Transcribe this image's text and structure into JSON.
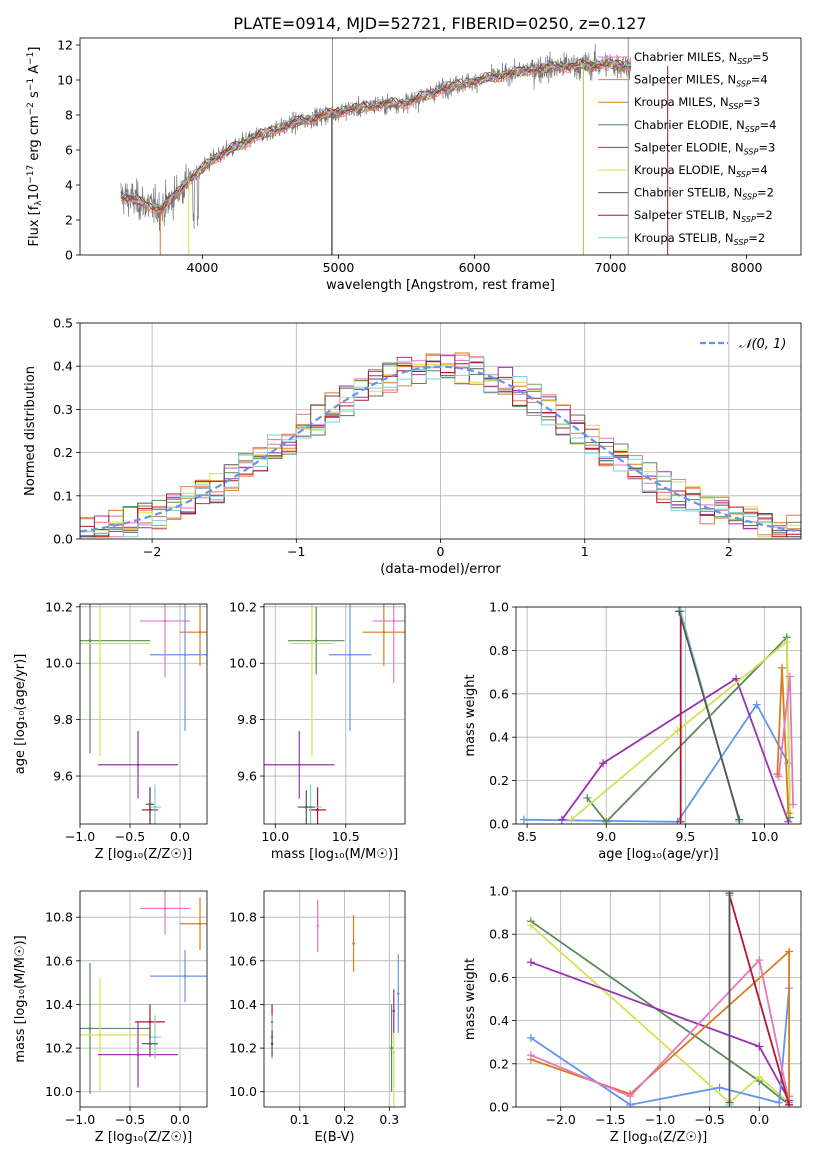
{
  "figure_title": "PLATE=0914, MJD=52721, FIBERID=0250, z=0.127",
  "chart_data": [
    {
      "type": "line",
      "panel": "spectrum",
      "xlabel": "wavelength [Angstrom, rest frame]",
      "ylabel_parts": [
        "Flux [f",
        "λ",
        "10",
        "−17",
        " erg cm",
        "−2",
        " s",
        "−1",
        " A",
        "−1",
        "]"
      ],
      "xlim": [
        3100,
        8400
      ],
      "ylim": [
        0,
        12.4
      ],
      "xticks": [
        4000,
        5000,
        6000,
        7000,
        8000
      ],
      "yticks": [
        0,
        2,
        4,
        6,
        8,
        10,
        12
      ],
      "grid": false,
      "legend_position": "right",
      "data_color": "#777777",
      "legend": [
        {
          "base": "Chabrier MILES, N",
          "sub": "SSP",
          "value": "=5",
          "color": "#e377c2"
        },
        {
          "base": "Salpeter MILES, N",
          "sub": "SSP",
          "value": "=4",
          "color": "#e07a5f"
        },
        {
          "base": "Kroupa MILES, N",
          "sub": "SSP",
          "value": "=3",
          "color": "#d97b1f"
        },
        {
          "base": "Chabrier ELODIE, N",
          "sub": "SSP",
          "value": "=4",
          "color": "#5a8a5a"
        },
        {
          "base": "Salpeter ELODIE, N",
          "sub": "SSP",
          "value": "=3",
          "color": "#9b30b0"
        },
        {
          "base": "Kroupa ELODIE, N",
          "sub": "SSP",
          "value": "=4",
          "color": "#d4e157"
        },
        {
          "base": "Chabrier STELIB, N",
          "sub": "SSP",
          "value": "=2",
          "color": "#555555"
        },
        {
          "base": "Salpeter STELIB, N",
          "sub": "SSP",
          "value": "=2",
          "color": "#b2182b"
        },
        {
          "base": "Kroupa STELIB, N",
          "sub": "SSP",
          "value": "=2",
          "color": "#7fd3d3"
        }
      ],
      "continuum_points": [
        [
          3400,
          3.4
        ],
        [
          3700,
          2.6
        ],
        [
          3900,
          4.3
        ],
        [
          4100,
          5.6
        ],
        [
          4400,
          6.8
        ],
        [
          4700,
          7.6
        ],
        [
          5000,
          8.2
        ],
        [
          5300,
          8.6
        ],
        [
          5500,
          8.7
        ],
        [
          5800,
          9.6
        ],
        [
          6100,
          10.1
        ],
        [
          6400,
          10.6
        ],
        [
          6700,
          10.8
        ],
        [
          7000,
          10.9
        ],
        [
          7150,
          10.8
        ]
      ],
      "data_range": [
        3400,
        7150
      ],
      "model_range": [
        3400,
        7150
      ],
      "sharp_drops_x": [
        3690,
        3900,
        4950,
        6800,
        7420
      ]
    },
    {
      "type": "histogram",
      "panel": "residuals",
      "xlabel": "(data-model)/error",
      "ylabel": "Normed distribution",
      "xlim": [
        -2.5,
        2.5
      ],
      "ylim": [
        0,
        0.5
      ],
      "xticks": [
        -2,
        -1,
        0,
        1,
        2
      ],
      "xtick_labels": [
        "−2",
        "−1",
        "0",
        "1",
        "2"
      ],
      "yticks": [
        0.0,
        0.1,
        0.2,
        0.3,
        0.4,
        0.5
      ],
      "ytick_labels": [
        "0.0",
        "0.1",
        "0.2",
        "0.3",
        "0.4",
        "0.5"
      ],
      "grid": true,
      "legend_position": "top-right",
      "normal_label": "𝒩(0, 1)",
      "normal_color": "#6495ed",
      "bin_width": 0.1
    },
    {
      "type": "scatter",
      "panel": "age-vs-Z",
      "xlabel": "Z [log₁₀(Z/Z☉)]",
      "ylabel": "age  [log₁₀(age/yr)]",
      "xlim": [
        -1.0,
        0.27
      ],
      "ylim": [
        9.43,
        10.21
      ],
      "xticks": [
        -1.0,
        -0.5,
        0.0
      ],
      "xtick_labels": [
        "−1.0",
        "−0.5",
        "0.0"
      ],
      "yticks": [
        9.6,
        9.8,
        10.0,
        10.2
      ],
      "ytick_labels": [
        "9.6",
        "9.8",
        "10.0",
        "10.2"
      ],
      "grid": true,
      "points": [
        {
          "x": 0.2,
          "y": 10.11,
          "xerr": 0.2,
          "yerr": 0.12,
          "color": "#d97b1f"
        },
        {
          "x": -0.15,
          "y": 10.15,
          "xerr": 0.25,
          "yerr": 0.2,
          "color": "#e377c2"
        },
        {
          "x": 0.05,
          "y": 10.03,
          "xerr": 0.35,
          "yerr": 0.27,
          "color": "#6495ed"
        },
        {
          "x": -0.9,
          "y": 10.08,
          "xerr": 0.6,
          "yerr": 0.4,
          "color": "#5a8a5a"
        },
        {
          "x": -0.8,
          "y": 10.07,
          "xerr": 0.5,
          "yerr": 0.4,
          "color": "#d4e157"
        },
        {
          "x": -0.42,
          "y": 9.64,
          "xerr": 0.4,
          "yerr": 0.12,
          "color": "#9b30b0"
        },
        {
          "x": -0.3,
          "y": 9.48,
          "xerr": 0.08,
          "yerr": 0.08,
          "color": "#b2182b"
        },
        {
          "x": -0.25,
          "y": 9.49,
          "xerr": 0.06,
          "yerr": 0.08,
          "color": "#7fd3d3"
        },
        {
          "x": -0.3,
          "y": 9.5,
          "xerr": 0.04,
          "yerr": 0.06,
          "color": "#555555"
        }
      ]
    },
    {
      "type": "scatter",
      "panel": "age-vs-mass",
      "xlabel": "mass [log₁₀(M/M☉)]",
      "ylabel": "",
      "xlim": [
        9.92,
        10.92
      ],
      "ylim": [
        9.43,
        10.21
      ],
      "xticks": [
        10.0,
        10.5
      ],
      "xtick_labels": [
        "10.0",
        "10.5"
      ],
      "yticks": [
        9.6,
        9.8,
        10.0,
        10.2
      ],
      "ytick_labels": [
        "9.6",
        "9.8",
        "10.0",
        "10.2"
      ],
      "grid": true,
      "points": [
        {
          "x": 10.77,
          "y": 10.11,
          "xerr": 0.15,
          "yerr": 0.12,
          "color": "#d97b1f"
        },
        {
          "x": 10.84,
          "y": 10.15,
          "xerr": 0.15,
          "yerr": 0.22,
          "color": "#e377c2"
        },
        {
          "x": 10.53,
          "y": 10.03,
          "xerr": 0.15,
          "yerr": 0.27,
          "color": "#6495ed"
        },
        {
          "x": 10.29,
          "y": 10.08,
          "xerr": 0.2,
          "yerr": 0.12,
          "color": "#5a8a5a"
        },
        {
          "x": 10.26,
          "y": 10.07,
          "xerr": 0.15,
          "yerr": 0.4,
          "color": "#d4e157"
        },
        {
          "x": 10.17,
          "y": 9.64,
          "xerr": 0.25,
          "yerr": 0.12,
          "color": "#9b30b0"
        },
        {
          "x": 10.3,
          "y": 9.48,
          "xerr": 0.06,
          "yerr": 0.08,
          "color": "#b2182b"
        },
        {
          "x": 10.25,
          "y": 9.49,
          "xerr": 0.08,
          "yerr": 0.08,
          "color": "#7fd3d3"
        },
        {
          "x": 10.22,
          "y": 9.49,
          "xerr": 0.06,
          "yerr": 0.06,
          "color": "#555555"
        }
      ]
    },
    {
      "type": "line",
      "panel": "weight-vs-age",
      "xlabel": "age  [log₁₀(age/yr)]",
      "ylabel": "mass weight",
      "xlim": [
        8.43,
        10.23
      ],
      "ylim": [
        0,
        1.0
      ],
      "xticks": [
        8.5,
        9.0,
        9.5,
        10.0
      ],
      "xtick_labels": [
        "8.5",
        "9.0",
        "9.5",
        "10.0"
      ],
      "yticks": [
        0.0,
        0.2,
        0.4,
        0.6,
        0.8,
        1.0
      ],
      "ytick_labels": [
        "0.0",
        "0.2",
        "0.4",
        "0.6",
        "0.8",
        "1.0"
      ],
      "grid": true,
      "series": [
        {
          "color": "#6495ed",
          "x": [
            8.48,
            9.45,
            9.95,
            10.15
          ],
          "y": [
            0.02,
            0.01,
            0.55,
            0.28
          ]
        },
        {
          "color": "#9b30b0",
          "x": [
            8.72,
            8.98,
            9.82,
            10.15
          ],
          "y": [
            0.02,
            0.28,
            0.67,
            0.01
          ]
        },
        {
          "color": "#5a8a5a",
          "x": [
            8.88,
            9.0,
            10.14,
            10.16
          ],
          "y": [
            0.12,
            0.01,
            0.86,
            0.03
          ]
        },
        {
          "color": "#d4e157",
          "x": [
            8.78,
            9.45,
            10.14,
            10.16
          ],
          "y": [
            0.02,
            0.43,
            0.84,
            0.05
          ]
        },
        {
          "color": "#d97b1f",
          "x": [
            10.08,
            10.11,
            10.15
          ],
          "y": [
            0.23,
            0.72,
            0.05
          ]
        },
        {
          "color": "#e377c2",
          "x": [
            10.09,
            10.16,
            10.18
          ],
          "y": [
            0.22,
            0.68,
            0.09
          ]
        },
        {
          "color": "#b2182b",
          "x": [
            9.47,
            9.47
          ],
          "y": [
            0.98,
            0.01
          ]
        },
        {
          "color": "#7fd3d3",
          "x": [
            9.47,
            9.84
          ],
          "y": [
            0.98,
            0.01
          ]
        },
        {
          "color": "#555555",
          "x": [
            9.46,
            9.84
          ],
          "y": [
            0.98,
            0.02
          ]
        }
      ]
    },
    {
      "type": "scatter",
      "panel": "mass-vs-Z",
      "xlabel": "Z [log₁₀(Z/Z☉)]",
      "ylabel": "mass [log₁₀(M/M☉)]",
      "xlim": [
        -1.0,
        0.27
      ],
      "ylim": [
        9.93,
        10.92
      ],
      "xticks": [
        -1.0,
        -0.5,
        0.0
      ],
      "xtick_labels": [
        "−1.0",
        "−0.5",
        "0.0"
      ],
      "yticks": [
        10.0,
        10.2,
        10.4,
        10.6,
        10.8
      ],
      "ytick_labels": [
        "10.0",
        "10.2",
        "10.4",
        "10.6",
        "10.8"
      ],
      "grid": true,
      "points": [
        {
          "x": 0.2,
          "y": 10.77,
          "xerr": 0.2,
          "yerr": 0.12,
          "color": "#d97b1f"
        },
        {
          "x": -0.15,
          "y": 10.84,
          "xerr": 0.25,
          "yerr": 0.12,
          "color": "#e377c2"
        },
        {
          "x": 0.05,
          "y": 10.53,
          "xerr": 0.35,
          "yerr": 0.12,
          "color": "#6495ed"
        },
        {
          "x": -0.9,
          "y": 10.29,
          "xerr": 0.6,
          "yerr": 0.3,
          "color": "#5a8a5a"
        },
        {
          "x": -0.8,
          "y": 10.26,
          "xerr": 0.5,
          "yerr": 0.26,
          "color": "#d4e157"
        },
        {
          "x": -0.42,
          "y": 10.17,
          "xerr": 0.4,
          "yerr": 0.15,
          "color": "#9b30b0"
        },
        {
          "x": -0.3,
          "y": 10.32,
          "xerr": 0.15,
          "yerr": 0.08,
          "color": "#b2182b"
        },
        {
          "x": -0.25,
          "y": 10.25,
          "xerr": 0.06,
          "yerr": 0.1,
          "color": "#7fd3d3"
        },
        {
          "x": -0.3,
          "y": 10.22,
          "xerr": 0.08,
          "yerr": 0.06,
          "color": "#555555"
        }
      ]
    },
    {
      "type": "scatter",
      "panel": "mass-vs-EBV",
      "xlabel": "E(B-V)",
      "ylabel": "",
      "xlim": [
        0.02,
        0.335
      ],
      "ylim": [
        9.93,
        10.92
      ],
      "xticks": [
        0.1,
        0.2,
        0.3
      ],
      "xtick_labels": [
        "0.1",
        "0.2",
        "0.3"
      ],
      "yticks": [
        10.0,
        10.2,
        10.4,
        10.6,
        10.8
      ],
      "ytick_labels": [
        "10.0",
        "10.2",
        "10.4",
        "10.6",
        "10.8"
      ],
      "grid": true,
      "points": [
        {
          "x": 0.22,
          "y": 10.68,
          "yerr": 0.13,
          "color": "#d97b1f"
        },
        {
          "x": 0.14,
          "y": 10.76,
          "yerr": 0.12,
          "color": "#e377c2"
        },
        {
          "x": 0.32,
          "y": 10.45,
          "yerr": 0.18,
          "color": "#6495ed"
        },
        {
          "x": 0.305,
          "y": 10.2,
          "yerr": 0.2,
          "color": "#5a8a5a"
        },
        {
          "x": 0.31,
          "y": 10.18,
          "yerr": 0.25,
          "color": "#d4e157"
        },
        {
          "x": 0.31,
          "y": 10.37,
          "yerr": 0.1,
          "color": "#9b30b0"
        },
        {
          "x": 0.038,
          "y": 10.32,
          "yerr": 0.08,
          "color": "#b2182b"
        },
        {
          "x": 0.038,
          "y": 10.25,
          "yerr": 0.1,
          "color": "#7fd3d3"
        },
        {
          "x": 0.038,
          "y": 10.22,
          "yerr": 0.06,
          "color": "#555555"
        }
      ]
    },
    {
      "type": "line",
      "panel": "weight-vs-Z",
      "xlabel": "Z [log₁₀(Z/Z☉)]",
      "ylabel": "mass weight",
      "xlim": [
        -2.45,
        0.42
      ],
      "ylim": [
        0,
        1.0
      ],
      "xticks": [
        -2.0,
        -1.5,
        -1.0,
        -0.5,
        0.0
      ],
      "xtick_labels": [
        "−2.0",
        "−1.5",
        "−1.0",
        "−0.5",
        "0.0"
      ],
      "yticks": [
        0.0,
        0.2,
        0.4,
        0.6,
        0.8,
        1.0
      ],
      "ytick_labels": [
        "0.0",
        "0.2",
        "0.4",
        "0.6",
        "0.8",
        "1.0"
      ],
      "grid": true,
      "series": [
        {
          "color": "#5a8a5a",
          "x": [
            -2.3,
            0.0,
            0.3
          ],
          "y": [
            0.86,
            0.12,
            0.01
          ]
        },
        {
          "color": "#d4e157",
          "x": [
            -2.3,
            -0.3,
            0.0,
            0.3
          ],
          "y": [
            0.84,
            0.02,
            0.14,
            0.02
          ]
        },
        {
          "color": "#9b30b0",
          "x": [
            -2.3,
            0.0,
            0.3
          ],
          "y": [
            0.67,
            0.28,
            0.03
          ]
        },
        {
          "color": "#6495ed",
          "x": [
            -2.3,
            -1.3,
            -0.4,
            0.2,
            0.3
          ],
          "y": [
            0.32,
            0.01,
            0.09,
            0.02,
            0.55
          ]
        },
        {
          "color": "#d97b1f",
          "x": [
            -2.3,
            -1.3,
            0.3,
            0.3
          ],
          "y": [
            0.22,
            0.06,
            0.72,
            0.05
          ]
        },
        {
          "color": "#e377c2",
          "x": [
            -2.3,
            -1.3,
            0.0,
            0.3
          ],
          "y": [
            0.24,
            0.05,
            0.68,
            0.02
          ]
        },
        {
          "color": "#b2182b",
          "x": [
            -0.3,
            0.3
          ],
          "y": [
            0.98,
            0.01
          ]
        },
        {
          "color": "#7fd3d3",
          "x": [
            -0.3,
            -0.3
          ],
          "y": [
            0.98,
            0.01
          ]
        },
        {
          "color": "#555555",
          "x": [
            -0.3,
            -0.3
          ],
          "y": [
            0.99,
            0.02
          ]
        }
      ]
    }
  ]
}
